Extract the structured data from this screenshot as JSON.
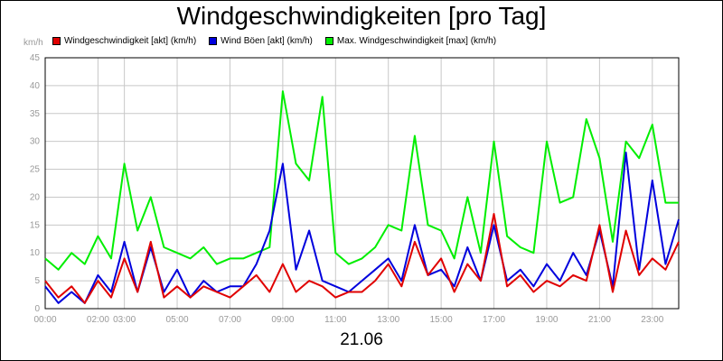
{
  "chart_data": {
    "type": "line",
    "title": "Windgeschwindigkeiten [pro Tag]",
    "ylabel": "km/h",
    "ylim": [
      0,
      45
    ],
    "yticks": [
      "0",
      "5",
      "10",
      "15",
      "20",
      "25",
      "30",
      "35",
      "40",
      "45"
    ],
    "xlim": [
      0,
      24
    ],
    "xticks": [
      {
        "hour": 0,
        "label": "00:00"
      },
      {
        "hour": 2,
        "label": "02:00"
      },
      {
        "hour": 3,
        "label": "03:00"
      },
      {
        "hour": 5,
        "label": "05:00"
      },
      {
        "hour": 7,
        "label": "07:00"
      },
      {
        "hour": 9,
        "label": "09:00"
      },
      {
        "hour": 11,
        "label": "11:00"
      },
      {
        "hour": 13,
        "label": "13:00"
      },
      {
        "hour": 15,
        "label": "15:00"
      },
      {
        "hour": 17,
        "label": "17:00"
      },
      {
        "hour": 19,
        "label": "19:00"
      },
      {
        "hour": 21,
        "label": "21:00"
      },
      {
        "hour": 23,
        "label": "23:00"
      }
    ],
    "date_label": "21.06",
    "grid": true,
    "legend_position": "top",
    "x_hours": [
      0,
      0.5,
      1,
      1.5,
      2,
      2.5,
      3,
      3.5,
      4,
      4.5,
      5,
      5.5,
      6,
      6.5,
      7,
      7.5,
      8,
      8.5,
      9,
      9.5,
      10,
      10.5,
      11,
      11.5,
      12,
      12.5,
      13,
      13.5,
      14,
      14.5,
      15,
      15.5,
      16,
      16.5,
      17,
      17.5,
      18,
      18.5,
      19,
      19.5,
      20,
      20.5,
      21,
      21.5,
      22,
      22.5,
      23,
      23.5,
      24
    ],
    "series": [
      {
        "name": "Windgeschwindigkeit [akt] (km/h)",
        "color": "#e00000",
        "values": [
          5,
          2,
          4,
          1,
          5,
          2,
          9,
          3,
          12,
          2,
          4,
          2,
          4,
          3,
          2,
          4,
          6,
          3,
          8,
          3,
          5,
          4,
          2,
          3,
          3,
          5,
          8,
          4,
          12,
          6,
          9,
          3,
          8,
          5,
          17,
          4,
          6,
          3,
          5,
          4,
          6,
          5,
          15,
          3,
          14,
          6,
          9,
          7,
          12
        ]
      },
      {
        "name": "Wind Böen [akt] (km/h)",
        "color": "#0000dd",
        "values": [
          4,
          1,
          3,
          1,
          6,
          3,
          12,
          3,
          11,
          3,
          7,
          2,
          5,
          3,
          4,
          4,
          8,
          14,
          26,
          7,
          14,
          5,
          4,
          3,
          5,
          7,
          9,
          5,
          15,
          6,
          7,
          4,
          11,
          5,
          15,
          5,
          7,
          4,
          8,
          5,
          10,
          6,
          14,
          4,
          28,
          7,
          23,
          8,
          16
        ]
      },
      {
        "name": "Max. Windgeschwindigkeit [max] (km/h)",
        "color": "#00ee00",
        "values": [
          9,
          7,
          10,
          8,
          13,
          9,
          26,
          14,
          20,
          11,
          10,
          9,
          11,
          8,
          9,
          9,
          10,
          11,
          39,
          26,
          23,
          38,
          10,
          8,
          9,
          11,
          15,
          14,
          31,
          15,
          14,
          9,
          20,
          10,
          30,
          13,
          11,
          10,
          30,
          19,
          20,
          34,
          27,
          12,
          30,
          27,
          33,
          19,
          19
        ]
      }
    ]
  }
}
